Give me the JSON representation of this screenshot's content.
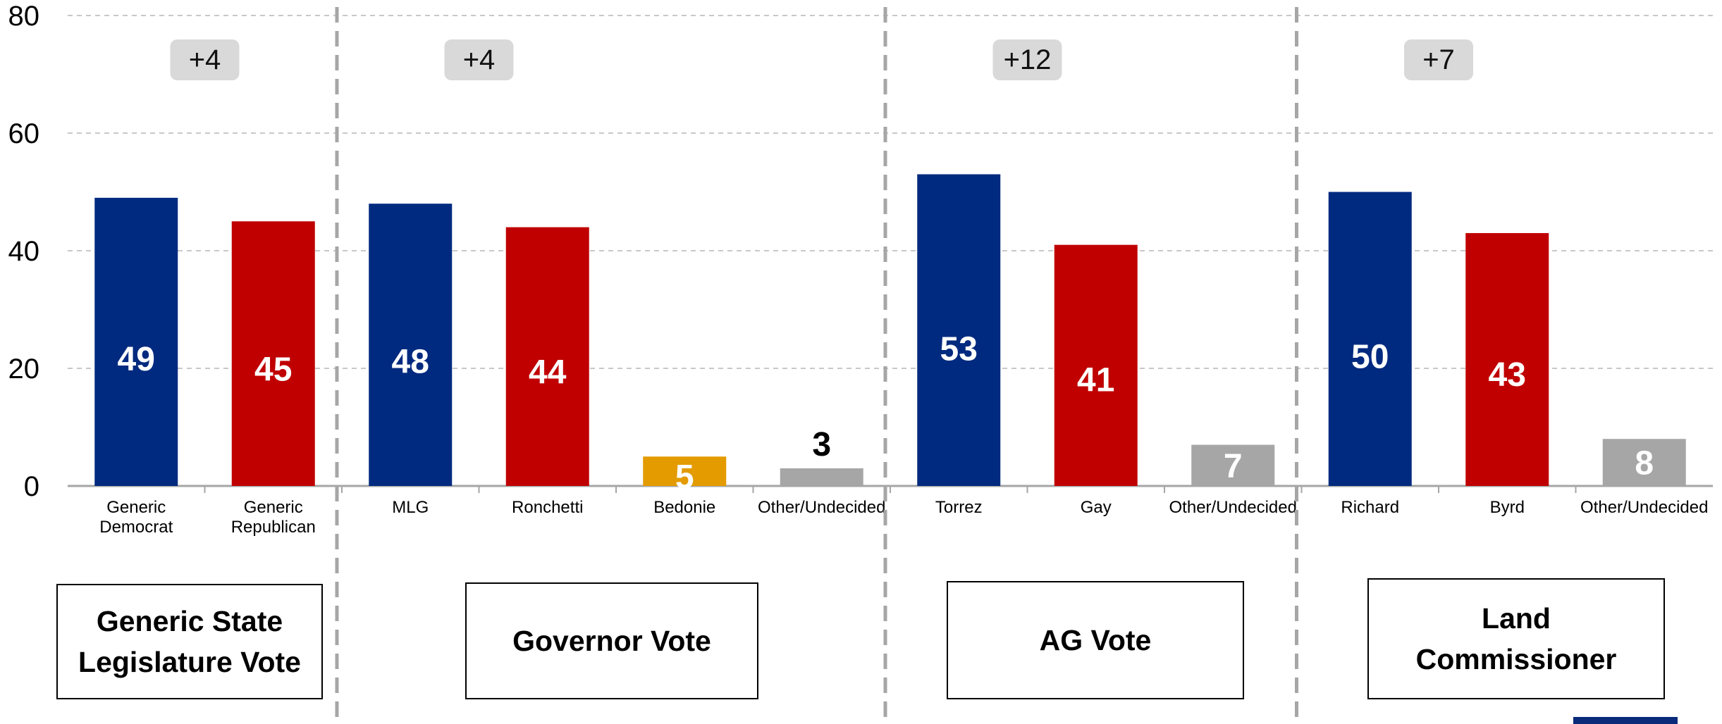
{
  "chart_data": {
    "type": "bar",
    "title": "",
    "xlabel": "",
    "ylabel": "",
    "ylim": [
      0,
      80
    ],
    "yticks": [
      0,
      20,
      40,
      60,
      80
    ],
    "grid": true,
    "colors": {
      "dem": "#002a7f",
      "rep": "#c00000",
      "lib": "#e39b00",
      "other": "#a6a6a6"
    },
    "groups": [
      {
        "name": "Generic State Legislature Vote",
        "margin": "+4",
        "bars": [
          {
            "label": "Generic Democrat",
            "value": 49,
            "party": "dem"
          },
          {
            "label": "Generic Republican",
            "value": 45,
            "party": "rep"
          }
        ]
      },
      {
        "name": "Governor Vote",
        "margin": "+4",
        "bars": [
          {
            "label": "MLG",
            "value": 48,
            "party": "dem"
          },
          {
            "label": "Ronchetti",
            "value": 44,
            "party": "rep"
          },
          {
            "label": "Bedonie",
            "value": 5,
            "party": "lib"
          },
          {
            "label": "Other/Undecided",
            "value": 3,
            "party": "other"
          }
        ]
      },
      {
        "name": "AG Vote",
        "margin": "+12",
        "bars": [
          {
            "label": "Torrez",
            "value": 53,
            "party": "dem"
          },
          {
            "label": "Gay",
            "value": 41,
            "party": "rep"
          },
          {
            "label": "Other/Undecided",
            "value": 7,
            "party": "other"
          }
        ]
      },
      {
        "name": "Land Commissioner",
        "margin": "+7",
        "bars": [
          {
            "label": "Richard",
            "value": 50,
            "party": "dem"
          },
          {
            "label": "Byrd",
            "value": 43,
            "party": "rep"
          },
          {
            "label": "Other/Undecided",
            "value": 8,
            "party": "other"
          }
        ]
      }
    ]
  },
  "group_boxes": [
    {
      "label": "Generic State\nLegislature Vote"
    },
    {
      "label": "Governor Vote"
    },
    {
      "label": "AG Vote"
    },
    {
      "label": "Land\nCommissioner"
    }
  ]
}
